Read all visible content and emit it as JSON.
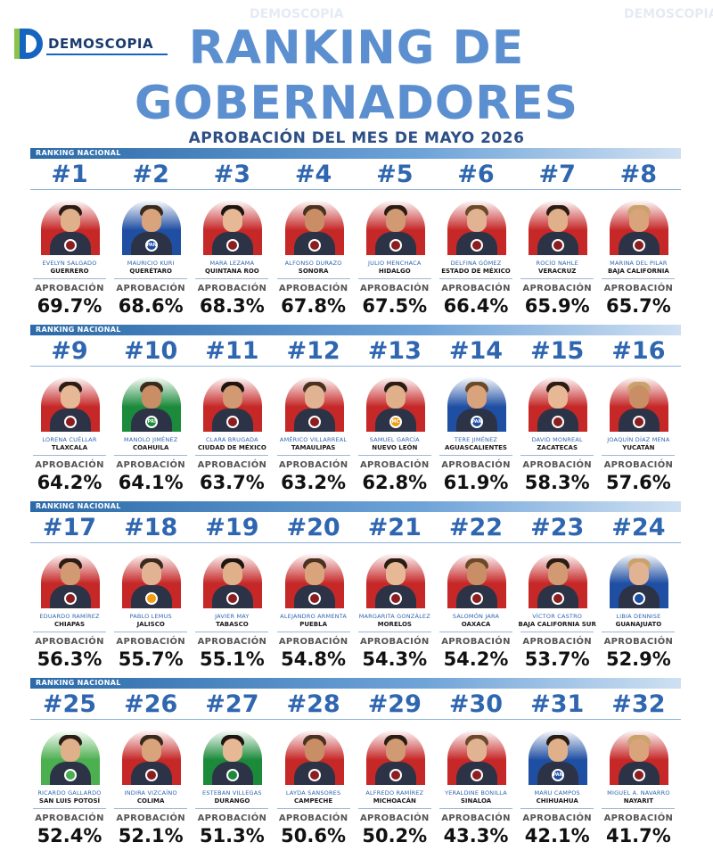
{
  "brand": {
    "name": "DEMOSCOPIA"
  },
  "title_line1": "RANKING DE",
  "title_line2": "GOBERNADORES",
  "subtitle": "APROBACIÓN DEL MES DE MAYO 2026",
  "section_label": "RANKING NACIONAL",
  "approval_label": "APROBACIÓN",
  "party_colors": {
    "morena": "#8b1e1e",
    "pan": "#1f4fa3",
    "pri": "#1b8a3a",
    "mc": "#f39c12",
    "pvem": "#4caf50",
    "independent": "#8a8a8a"
  },
  "rows": [
    [
      {
        "rank": "#1",
        "name": "EVELYN SALGADO",
        "state": "GUERRERO",
        "approval": "69.7%",
        "approval_value": 69.7,
        "party": "morena",
        "bg": "#c62828",
        "badge_text": ""
      },
      {
        "rank": "#2",
        "name": "MAURICIO KURI",
        "state": "QUERÉTARO",
        "approval": "68.6%",
        "approval_value": 68.6,
        "party": "pan",
        "bg": "#1f4fa3",
        "badge_text": "PAN"
      },
      {
        "rank": "#3",
        "name": "MARA LEZAMA",
        "state": "QUINTANA ROO",
        "approval": "68.3%",
        "approval_value": 68.3,
        "party": "morena",
        "bg": "#c62828",
        "badge_text": ""
      },
      {
        "rank": "#4",
        "name": "ALFONSO DURAZO",
        "state": "SONORA",
        "approval": "67.8%",
        "approval_value": 67.8,
        "party": "morena",
        "bg": "#c62828",
        "badge_text": ""
      },
      {
        "rank": "#5",
        "name": "JULIO MENCHACA",
        "state": "HIDALGO",
        "approval": "67.5%",
        "approval_value": 67.5,
        "party": "morena",
        "bg": "#c62828",
        "badge_text": ""
      },
      {
        "rank": "#6",
        "name": "DELFINA GÓMEZ",
        "state": "ESTADO DE MÉXICO",
        "approval": "66.4%",
        "approval_value": 66.4,
        "party": "morena",
        "bg": "#c62828",
        "badge_text": ""
      },
      {
        "rank": "#7",
        "name": "ROCÍO NAHLE",
        "state": "VERACRUZ",
        "approval": "65.9%",
        "approval_value": 65.9,
        "party": "morena",
        "bg": "#c62828",
        "badge_text": ""
      },
      {
        "rank": "#8",
        "name": "MARINA DEL PILAR",
        "state": "BAJA CALIFORNIA",
        "approval": "65.7%",
        "approval_value": 65.7,
        "party": "morena",
        "bg": "#c62828",
        "badge_text": ""
      }
    ],
    [
      {
        "rank": "#9",
        "name": "LORENA CUÉLLAR",
        "state": "TLAXCALA",
        "approval": "64.2%",
        "approval_value": 64.2,
        "party": "morena",
        "bg": "#c62828",
        "badge_text": ""
      },
      {
        "rank": "#10",
        "name": "MANOLO JIMÉNEZ",
        "state": "COAHUILA",
        "approval": "64.1%",
        "approval_value": 64.1,
        "party": "pri",
        "bg": "#1b8a3a",
        "badge_text": "PRI"
      },
      {
        "rank": "#11",
        "name": "CLARA BRUGADA",
        "state": "CIUDAD DE MÉXICO",
        "approval": "63.7%",
        "approval_value": 63.7,
        "party": "morena",
        "bg": "#c62828",
        "badge_text": ""
      },
      {
        "rank": "#12",
        "name": "AMÉRICO VILLARREAL",
        "state": "TAMAULIPAS",
        "approval": "63.2%",
        "approval_value": 63.2,
        "party": "morena",
        "bg": "#c62828",
        "badge_text": ""
      },
      {
        "rank": "#13",
        "name": "SAMUEL GARCÍA",
        "state": "NUEVO LEÓN",
        "approval": "62.8%",
        "approval_value": 62.8,
        "party": "mc",
        "bg": "#c62828",
        "badge_text": "MC"
      },
      {
        "rank": "#14",
        "name": "TERE JIMÉNEZ",
        "state": "AGUASCALIENTES",
        "approval": "61.9%",
        "approval_value": 61.9,
        "party": "pan",
        "bg": "#1f4fa3",
        "badge_text": "PAN"
      },
      {
        "rank": "#15",
        "name": "DAVID MONREAL",
        "state": "ZACATECAS",
        "approval": "58.3%",
        "approval_value": 58.3,
        "party": "morena",
        "bg": "#c62828",
        "badge_text": ""
      },
      {
        "rank": "#16",
        "name": "JOAQUÍN DÍAZ MENA",
        "state": "YUCATÁN",
        "approval": "57.6%",
        "approval_value": 57.6,
        "party": "morena",
        "bg": "#c62828",
        "badge_text": ""
      }
    ],
    [
      {
        "rank": "#17",
        "name": "EDUARDO RAMÍREZ",
        "state": "CHIAPAS",
        "approval": "56.3%",
        "approval_value": 56.3,
        "party": "morena",
        "bg": "#c62828",
        "badge_text": ""
      },
      {
        "rank": "#18",
        "name": "PABLO LEMUS",
        "state": "JALISCO",
        "approval": "55.7%",
        "approval_value": 55.7,
        "party": "mc",
        "bg": "#c62828",
        "badge_text": ""
      },
      {
        "rank": "#19",
        "name": "JAVIER MAY",
        "state": "TABASCO",
        "approval": "55.1%",
        "approval_value": 55.1,
        "party": "morena",
        "bg": "#c62828",
        "badge_text": ""
      },
      {
        "rank": "#20",
        "name": "ALEJANDRO ARMENTA",
        "state": "PUEBLA",
        "approval": "54.8%",
        "approval_value": 54.8,
        "party": "morena",
        "bg": "#c62828",
        "badge_text": ""
      },
      {
        "rank": "#21",
        "name": "MARGARITA GONZÁLEZ",
        "state": "MORELOS",
        "approval": "54.3%",
        "approval_value": 54.3,
        "party": "morena",
        "bg": "#c62828",
        "badge_text": ""
      },
      {
        "rank": "#22",
        "name": "SALOMÓN JARA",
        "state": "OAXACA",
        "approval": "54.2%",
        "approval_value": 54.2,
        "party": "morena",
        "bg": "#c62828",
        "badge_text": ""
      },
      {
        "rank": "#23",
        "name": "VÍCTOR CASTRO",
        "state": "BAJA CALIFORNIA SUR",
        "approval": "53.7%",
        "approval_value": 53.7,
        "party": "morena",
        "bg": "#c62828",
        "badge_text": ""
      },
      {
        "rank": "#24",
        "name": "LIBIA DENNISE",
        "state": "GUANAJUATO",
        "approval": "52.9%",
        "approval_value": 52.9,
        "party": "pan",
        "bg": "#1f4fa3",
        "badge_text": ""
      }
    ],
    [
      {
        "rank": "#25",
        "name": "RICARDO GALLARDO",
        "state": "SAN LUIS POTOSÍ",
        "approval": "52.4%",
        "approval_value": 52.4,
        "party": "pvem",
        "bg": "#4caf50",
        "badge_text": ""
      },
      {
        "rank": "#26",
        "name": "INDIRA VIZCAÍNO",
        "state": "COLIMA",
        "approval": "52.1%",
        "approval_value": 52.1,
        "party": "morena",
        "bg": "#c62828",
        "badge_text": ""
      },
      {
        "rank": "#27",
        "name": "ESTEBAN VILLEGAS",
        "state": "DURANGO",
        "approval": "51.3%",
        "approval_value": 51.3,
        "party": "pri",
        "bg": "#1b8a3a",
        "badge_text": ""
      },
      {
        "rank": "#28",
        "name": "LAYDA SANSORES",
        "state": "CAMPECHE",
        "approval": "50.6%",
        "approval_value": 50.6,
        "party": "morena",
        "bg": "#c62828",
        "badge_text": ""
      },
      {
        "rank": "#29",
        "name": "ALFREDO RAMÍREZ",
        "state": "MICHOACÁN",
        "approval": "50.2%",
        "approval_value": 50.2,
        "party": "morena",
        "bg": "#c62828",
        "badge_text": ""
      },
      {
        "rank": "#30",
        "name": "YERALDINE BONILLA",
        "state": "SINALOA",
        "approval": "43.3%",
        "approval_value": 43.3,
        "party": "morena",
        "bg": "#c62828",
        "badge_text": ""
      },
      {
        "rank": "#31",
        "name": "MARU CAMPOS",
        "state": "CHIHUAHUA",
        "approval": "42.1%",
        "approval_value": 42.1,
        "party": "pan",
        "bg": "#1f4fa3",
        "badge_text": "PAN"
      },
      {
        "rank": "#32",
        "name": "MIGUEL A. NAVARRO",
        "state": "NAYARIT",
        "approval": "41.7%",
        "approval_value": 41.7,
        "party": "morena",
        "bg": "#c62828",
        "badge_text": ""
      }
    ]
  ]
}
